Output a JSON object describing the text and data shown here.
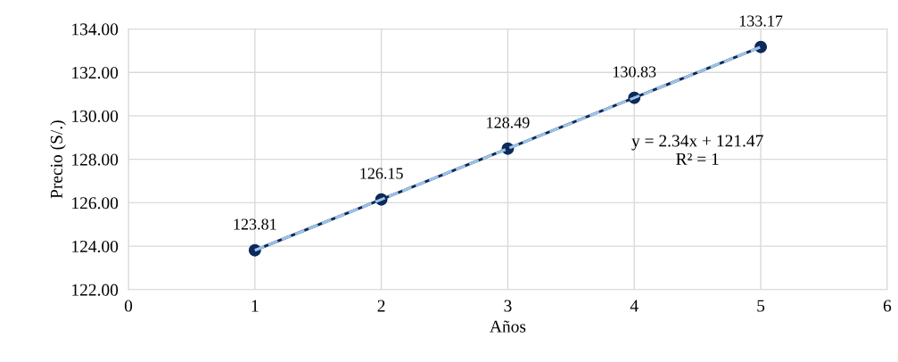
{
  "chart_data": {
    "type": "line",
    "xlabel": "Años",
    "ylabel": "Precio (S/.)",
    "x": [
      1,
      2,
      3,
      4,
      5
    ],
    "series": [
      {
        "color": "#0c2a5b",
        "values": [
          123.81,
          126.15,
          128.49,
          130.83,
          133.17
        ],
        "marker": "circle",
        "line_style": "solid",
        "value_labels": [
          "123.81",
          "126.15",
          "128.49",
          "130.83",
          "133.17"
        ]
      },
      {
        "color": "#9dc3e6",
        "x": [
          1,
          5
        ],
        "values": [
          123.81,
          133.17
        ],
        "marker": "none",
        "line_style": "dashed"
      }
    ],
    "annotations": [
      "y = 2.34x + 121.47\nR² = 1"
    ],
    "xlim": [
      0,
      6
    ],
    "xticks": [
      0,
      1,
      2,
      3,
      4,
      5,
      6
    ],
    "ylim": [
      122,
      134
    ],
    "yticks": [
      {
        "value": 122,
        "label": "122.00"
      },
      {
        "value": 124,
        "label": "124.00"
      },
      {
        "value": 126,
        "label": "126.00"
      },
      {
        "value": 128,
        "label": "128.00"
      },
      {
        "value": 130,
        "label": "130.00"
      },
      {
        "value": 132,
        "label": "132.00"
      },
      {
        "value": 134,
        "label": "134.00"
      }
    ],
    "grid": true,
    "legend": false
  }
}
